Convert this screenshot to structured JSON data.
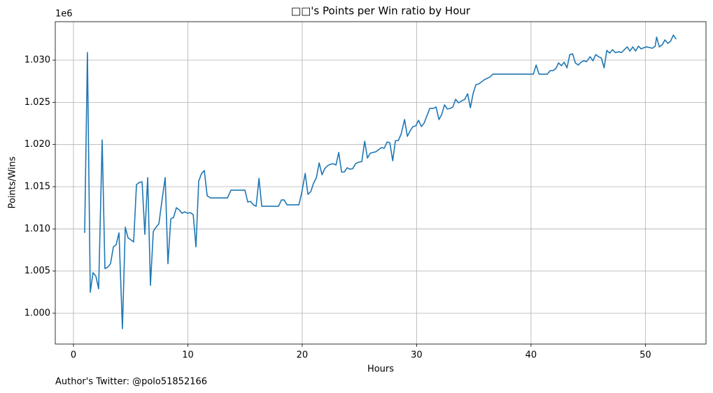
{
  "chart_data": {
    "type": "line",
    "title": "□□'s Points per Win ratio by Hour",
    "x_label": "Hours",
    "y_label": "Points/Wins",
    "y_offset_label": "1e6",
    "footnote": "Author's Twitter: @polo51852166",
    "grid": true,
    "xlim": [
      -1.59,
      55.3
    ],
    "ylim": [
      0.99635,
      1.03456
    ],
    "xticks": [
      0,
      10,
      20,
      30,
      40,
      50
    ],
    "yticks": [
      {
        "value": 1.0,
        "label": "1.000"
      },
      {
        "value": 1.005,
        "label": "1.005"
      },
      {
        "value": 1.01,
        "label": "1.010"
      },
      {
        "value": 1.015,
        "label": "1.015"
      },
      {
        "value": 1.02,
        "label": "1.020"
      },
      {
        "value": 1.025,
        "label": "1.025"
      },
      {
        "value": 1.03,
        "label": "1.030"
      }
    ],
    "series": [
      {
        "color": "#1f77b4",
        "x": [
          0.98,
          1.22,
          1.47,
          1.71,
          1.96,
          2.2,
          2.51,
          2.75,
          3.0,
          3.24,
          3.49,
          3.73,
          3.98,
          4.28,
          4.53,
          4.77,
          5.02,
          5.26,
          5.51,
          5.75,
          6.0,
          6.24,
          6.49,
          6.73,
          6.98,
          7.22,
          7.47,
          7.71,
          8.02,
          8.26,
          8.51,
          8.75,
          9.0,
          9.24,
          9.49,
          9.73,
          9.98,
          10.22,
          10.47,
          10.71,
          10.95,
          11.2,
          11.44,
          11.69,
          12.0,
          13.46,
          13.77,
          14.99,
          15.24,
          15.48,
          15.73,
          15.97,
          16.22,
          16.46,
          17.93,
          18.18,
          18.42,
          18.67,
          19.71,
          19.95,
          20.26,
          20.5,
          20.75,
          20.99,
          21.24,
          21.48,
          21.73,
          21.97,
          22.22,
          22.46,
          22.71,
          22.95,
          23.19,
          23.44,
          23.68,
          23.93,
          24.17,
          24.42,
          24.66,
          24.91,
          25.21,
          25.46,
          25.7,
          25.95,
          26.19,
          26.44,
          26.68,
          26.93,
          27.17,
          27.42,
          27.66,
          27.91,
          28.15,
          28.4,
          28.64,
          28.95,
          29.19,
          29.44,
          29.68,
          29.93,
          30.17,
          30.42,
          30.66,
          30.91,
          31.15,
          31.46,
          31.7,
          31.95,
          32.19,
          32.44,
          32.68,
          32.93,
          33.17,
          33.41,
          33.66,
          33.97,
          34.21,
          34.46,
          34.7,
          34.95,
          35.19,
          35.43,
          35.68,
          35.92,
          36.17,
          36.41,
          36.66,
          40.21,
          40.45,
          40.7,
          41.43,
          41.68,
          41.92,
          42.17,
          42.41,
          42.66,
          42.9,
          43.15,
          43.39,
          43.64,
          43.88,
          44.13,
          44.37,
          44.61,
          44.86,
          45.17,
          45.41,
          45.66,
          45.9,
          46.15,
          46.39,
          46.63,
          46.88,
          47.12,
          47.37,
          47.67,
          47.92,
          48.16,
          48.41,
          48.65,
          48.9,
          49.14,
          49.39,
          49.63,
          49.88,
          50.12,
          50.37,
          50.61,
          50.86,
          50.98,
          51.22,
          51.47,
          51.71,
          51.96,
          52.2,
          52.45,
          52.69
        ],
        "values": [
          1.00953,
          1.03091,
          1.00249,
          1.00481,
          1.00439,
          1.0029,
          1.02055,
          1.0053,
          1.00547,
          1.00588,
          1.00787,
          1.00812,
          1.00953,
          0.99818,
          1.0102,
          1.00895,
          1.0087,
          1.00845,
          1.01525,
          1.0155,
          1.01558,
          1.00936,
          1.01608,
          1.00331,
          1.0097,
          1.0102,
          1.01061,
          1.01309,
          1.01608,
          1.00588,
          1.01119,
          1.01135,
          1.01251,
          1.01226,
          1.01185,
          1.01202,
          1.01185,
          1.01193,
          1.01168,
          1.00787,
          1.01566,
          1.01657,
          1.01691,
          1.01392,
          1.01367,
          1.01367,
          1.01459,
          1.01459,
          1.01318,
          1.01326,
          1.01285,
          1.01268,
          1.01599,
          1.01268,
          1.01268,
          1.01343,
          1.01343,
          1.01285,
          1.01285,
          1.01425,
          1.01657,
          1.01409,
          1.01442,
          1.01541,
          1.01608,
          1.01782,
          1.01641,
          1.01715,
          1.01749,
          1.01765,
          1.01773,
          1.01757,
          1.01906,
          1.01674,
          1.01674,
          1.01724,
          1.01707,
          1.01715,
          1.01773,
          1.0179,
          1.01798,
          1.02039,
          1.0184,
          1.01898,
          1.01906,
          1.01914,
          1.01939,
          1.01964,
          1.01956,
          1.0203,
          1.02022,
          1.01807,
          1.02047,
          1.02047,
          1.02121,
          1.02296,
          1.02097,
          1.02163,
          1.02213,
          1.02221,
          1.02287,
          1.02213,
          1.02254,
          1.02345,
          1.02428,
          1.02428,
          1.02445,
          1.02296,
          1.02354,
          1.0247,
          1.0242,
          1.02428,
          1.02445,
          1.02536,
          1.02494,
          1.02519,
          1.02536,
          1.02602,
          1.02436,
          1.0261,
          1.0271,
          1.02718,
          1.02743,
          1.02768,
          1.02784,
          1.02801,
          1.02834,
          1.02834,
          1.02942,
          1.02834,
          1.02834,
          1.02876,
          1.02876,
          1.029,
          1.02967,
          1.02934,
          1.02975,
          1.02909,
          1.03066,
          1.03074,
          1.02967,
          1.02942,
          1.02975,
          1.02992,
          1.02983,
          1.03041,
          1.02992,
          1.03066,
          1.03041,
          1.03025,
          1.02909,
          1.03116,
          1.03083,
          1.03124,
          1.03091,
          1.03099,
          1.03091,
          1.03124,
          1.03157,
          1.03108,
          1.03157,
          1.03108,
          1.03166,
          1.03133,
          1.03149,
          1.03157,
          1.03149,
          1.03141,
          1.03166,
          1.03273,
          1.03157,
          1.03182,
          1.0324,
          1.03199,
          1.03224,
          1.03298,
          1.03248
        ]
      }
    ]
  }
}
